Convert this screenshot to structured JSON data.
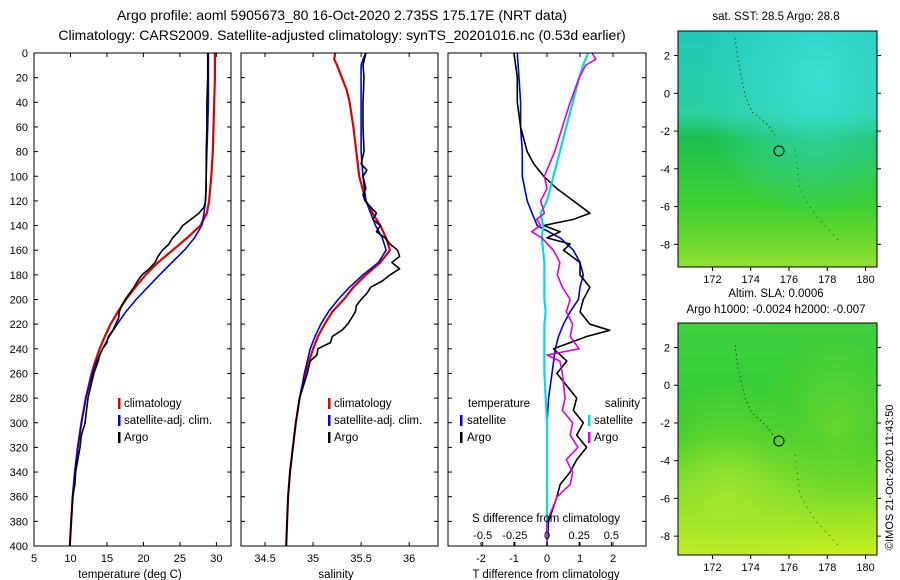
{
  "title_line1": "Argo profile: aoml 5905673_80 16-Oct-2020 2.735S 175.17E (NRT data)",
  "title_line2": "Climatology: CARS2009. Satellite-adjusted climatology: synTS_20201016.nc (0.53d earlier)",
  "colors": {
    "climatology": "#dd0000",
    "satellite": "#0000dd",
    "argo": "#000000",
    "s_sat": "#00dddd",
    "s_argo": "#dd00dd"
  },
  "depth_ticks": [
    "0",
    "20",
    "40",
    "60",
    "80",
    "100",
    "120",
    "140",
    "160",
    "180",
    "200",
    "220",
    "240",
    "260",
    "280",
    "300",
    "320",
    "340",
    "360",
    "380",
    "400"
  ],
  "chart_data": [
    {
      "type": "line",
      "id": "temperature",
      "xlabel": "temperature (deg C)",
      "xlim": [
        5,
        32
      ],
      "ylim": [
        0,
        400
      ],
      "xticks": [
        "5",
        "10",
        "15",
        "20",
        "25",
        "30"
      ],
      "legend": [
        "climatology",
        "satellite-adj. clim.",
        "Argo"
      ],
      "series": [
        {
          "name": "climatology",
          "depth": [
            0,
            20,
            40,
            60,
            80,
            100,
            120,
            130,
            140,
            150,
            160,
            170,
            180,
            190,
            200,
            210,
            220,
            230,
            240,
            250,
            260,
            280,
            300,
            320,
            340,
            360,
            380,
            400
          ],
          "values": [
            29.8,
            29.8,
            29.7,
            29.6,
            29.5,
            29.3,
            29.0,
            28.7,
            27.8,
            26.0,
            24.0,
            22.0,
            20.3,
            18.9,
            17.6,
            16.5,
            15.5,
            14.7,
            14.0,
            13.4,
            12.9,
            12.1,
            11.5,
            11.0,
            10.6,
            10.3,
            10.1,
            9.9
          ]
        },
        {
          "name": "satellite-adj. clim.",
          "depth": [
            0,
            20,
            40,
            60,
            80,
            100,
            120,
            130,
            140,
            150,
            160,
            170,
            180,
            190,
            200,
            210,
            220,
            230,
            240,
            250,
            260,
            280,
            300,
            320,
            340,
            360,
            380,
            400
          ],
          "values": [
            28.9,
            28.9,
            28.9,
            28.8,
            28.7,
            28.6,
            28.5,
            28.3,
            28.0,
            27.0,
            25.6,
            23.9,
            22.2,
            20.6,
            19.0,
            17.6,
            16.4,
            15.3,
            14.4,
            13.6,
            13.0,
            12.1,
            11.5,
            11.0,
            10.6,
            10.3,
            10.1,
            9.9
          ]
        },
        {
          "name": "Argo",
          "depth": [
            0,
            20,
            40,
            60,
            80,
            100,
            110,
            120,
            125,
            130,
            135,
            140,
            145,
            150,
            155,
            160,
            165,
            170,
            175,
            180,
            185,
            190,
            195,
            200,
            205,
            210,
            215,
            220,
            225,
            230,
            235,
            240,
            245,
            250,
            260,
            270,
            280,
            290,
            300,
            310,
            320,
            330,
            340,
            350,
            360,
            370,
            380,
            390,
            400
          ],
          "values": [
            28.8,
            28.8,
            28.7,
            28.7,
            28.6,
            28.6,
            28.6,
            28.5,
            28.3,
            27.6,
            26.5,
            25.4,
            24.8,
            24.0,
            23.5,
            22.6,
            22.0,
            21.6,
            20.8,
            19.8,
            19.2,
            18.7,
            18.1,
            17.5,
            17.0,
            16.7,
            16.6,
            16.2,
            15.8,
            15.2,
            15.0,
            14.4,
            14.0,
            13.8,
            13.2,
            12.8,
            12.4,
            12.2,
            12.0,
            11.5,
            11.3,
            11.0,
            10.7,
            10.6,
            10.3,
            10.2,
            10.1,
            10.0,
            9.9
          ]
        }
      ]
    },
    {
      "type": "line",
      "id": "salinity",
      "xlabel": "salinity",
      "xlim": [
        34.25,
        36.3
      ],
      "ylim": [
        0,
        400
      ],
      "xticks": [
        "34.5",
        "35",
        "35.5",
        "36"
      ],
      "legend": [
        "climatology",
        "satellite-adj. clim.",
        "Argo"
      ],
      "series": [
        {
          "name": "climatology",
          "depth": [
            0,
            5,
            10,
            20,
            30,
            40,
            60,
            80,
            100,
            120,
            130,
            140,
            150,
            160,
            170,
            180,
            190,
            200,
            210,
            220,
            230,
            240,
            250,
            260,
            280,
            300,
            320,
            340,
            360,
            380,
            400
          ],
          "values": [
            35.23,
            35.22,
            35.25,
            35.3,
            35.35,
            35.38,
            35.42,
            35.45,
            35.48,
            35.55,
            35.62,
            35.7,
            35.76,
            35.8,
            35.7,
            35.55,
            35.42,
            35.32,
            35.2,
            35.12,
            35.05,
            35.0,
            34.96,
            34.92,
            34.86,
            34.82,
            34.79,
            34.76,
            34.74,
            34.73,
            34.72
          ]
        },
        {
          "name": "satellite-adj. clim.",
          "depth": [
            0,
            5,
            10,
            20,
            40,
            60,
            80,
            100,
            120,
            130,
            140,
            150,
            160,
            170,
            180,
            190,
            200,
            210,
            220,
            230,
            240,
            260,
            280,
            300,
            320,
            340,
            360,
            380,
            400
          ],
          "values": [
            35.55,
            35.52,
            35.5,
            35.5,
            35.5,
            35.5,
            35.5,
            35.52,
            35.55,
            35.6,
            35.65,
            35.72,
            35.76,
            35.68,
            35.52,
            35.38,
            35.26,
            35.16,
            35.08,
            35.02,
            34.97,
            34.91,
            34.86,
            34.82,
            34.79,
            34.76,
            34.74,
            34.73,
            34.72
          ]
        },
        {
          "name": "Argo",
          "depth": [
            0,
            10,
            20,
            40,
            60,
            80,
            90,
            95,
            100,
            110,
            115,
            120,
            125,
            130,
            135,
            140,
            145,
            150,
            155,
            160,
            165,
            170,
            175,
            180,
            185,
            190,
            195,
            200,
            205,
            210,
            220,
            225,
            230,
            235,
            240,
            245,
            250,
            260,
            280,
            300,
            320,
            340,
            360,
            380,
            400
          ],
          "values": [
            35.55,
            35.52,
            35.53,
            35.52,
            35.52,
            35.53,
            35.5,
            35.56,
            35.52,
            35.55,
            35.52,
            35.54,
            35.6,
            35.66,
            35.62,
            35.7,
            35.66,
            35.75,
            35.8,
            35.88,
            35.9,
            35.82,
            35.9,
            35.8,
            35.72,
            35.6,
            35.56,
            35.5,
            35.45,
            35.44,
            35.36,
            35.3,
            35.2,
            35.18,
            35.05,
            35.04,
            34.97,
            34.94,
            34.86,
            34.82,
            34.79,
            34.76,
            34.74,
            34.73,
            34.72
          ]
        }
      ]
    },
    {
      "type": "line",
      "id": "difference",
      "xlabel": "T difference from climatology",
      "xlim": [
        -3,
        3
      ],
      "ylim": [
        0,
        400
      ],
      "xticks": [
        "-2",
        "-1",
        "0",
        "1",
        "2"
      ],
      "top_axis_label": "S difference from climatology",
      "top_ticks": [
        "-0.5",
        "-0.25",
        "0",
        "0.25",
        "0.5"
      ],
      "legend_left": {
        "header": "temperature",
        "items": [
          "satellite",
          "Argo"
        ]
      },
      "legend_right": {
        "header": "salinity",
        "items": [
          "satellite",
          "Argo"
        ]
      },
      "series": [
        {
          "name": "T satellite",
          "depth": [
            0,
            20,
            40,
            60,
            80,
            100,
            120,
            140,
            150,
            160,
            170,
            180,
            190,
            200,
            210,
            220,
            230,
            240,
            260,
            280,
            300,
            320,
            340,
            360,
            380,
            400
          ],
          "values": [
            -0.9,
            -0.85,
            -0.8,
            -0.8,
            -0.75,
            -0.75,
            -0.6,
            -0.3,
            0.4,
            0.8,
            1.0,
            1.1,
            1.0,
            0.95,
            0.7,
            0.5,
            0.35,
            0.25,
            0.15,
            0.05,
            0.0,
            0.0,
            0.0,
            0.0,
            0.0,
            0.0
          ]
        },
        {
          "name": "T Argo",
          "depth": [
            0,
            20,
            40,
            60,
            80,
            90,
            100,
            110,
            120,
            130,
            135,
            140,
            145,
            150,
            155,
            160,
            170,
            180,
            190,
            200,
            210,
            220,
            225,
            230,
            240,
            250,
            260,
            270,
            280,
            290,
            300,
            310,
            320,
            330,
            340,
            350,
            360,
            380,
            400
          ],
          "values": [
            -1.0,
            -0.9,
            -0.9,
            -0.8,
            -0.6,
            -0.4,
            -0.1,
            0.3,
            0.8,
            1.3,
            0.8,
            -0.1,
            0.4,
            0.0,
            0.7,
            0.5,
            1.0,
            1.0,
            1.3,
            1.1,
            1.0,
            1.3,
            1.9,
            1.2,
            0.2,
            0.6,
            0.3,
            0.6,
            0.9,
            0.8,
            1.1,
            0.9,
            1.2,
            0.9,
            0.7,
            0.4,
            0.3,
            0.05,
            0.0
          ]
        },
        {
          "name": "S satellite",
          "depth": [
            0,
            5,
            10,
            20,
            40,
            60,
            80,
            100,
            120,
            130,
            140,
            150,
            160,
            170,
            180,
            190,
            200,
            210,
            220,
            240,
            260,
            280,
            300,
            320,
            340,
            360,
            380,
            400
          ],
          "values": [
            0.32,
            0.3,
            0.28,
            0.25,
            0.2,
            0.15,
            0.1,
            0.05,
            0.0,
            -0.05,
            -0.03,
            -0.04,
            -0.03,
            -0.02,
            -0.02,
            -0.02,
            -0.02,
            -0.01,
            -0.02,
            -0.02,
            -0.02,
            -0.01,
            0.0,
            0.0,
            0.0,
            0.0,
            0.0,
            0.0
          ]
        },
        {
          "name": "S Argo",
          "depth": [
            0,
            5,
            10,
            20,
            40,
            60,
            80,
            100,
            110,
            120,
            130,
            135,
            140,
            145,
            150,
            160,
            170,
            180,
            190,
            200,
            210,
            220,
            230,
            240,
            245,
            250,
            260,
            280,
            290,
            300,
            310,
            320,
            330,
            340,
            350,
            360,
            380,
            400
          ],
          "values": [
            0.35,
            0.38,
            0.3,
            0.25,
            0.18,
            0.12,
            0.06,
            -0.02,
            0.0,
            -0.05,
            -0.02,
            -0.08,
            -0.05,
            -0.12,
            -0.04,
            0.05,
            0.1,
            0.08,
            0.12,
            0.18,
            0.15,
            0.2,
            0.18,
            0.25,
            0.0,
            0.1,
            0.12,
            0.14,
            0.12,
            0.2,
            0.18,
            0.24,
            0.15,
            0.2,
            0.18,
            0.08,
            0.0,
            0.0
          ]
        }
      ]
    }
  ],
  "maps": [
    {
      "title": "sat. SST: 28.5 Argo: 28.8",
      "yticks": [
        "2",
        "0",
        "-2",
        "-4",
        "-6",
        "-8"
      ],
      "xticks": [
        "172",
        "174",
        "176",
        "178",
        "180"
      ]
    },
    {
      "title_line1": "Altim. SLA: 0.0006",
      "title_line2": "Argo h1000: -0.0024 h2000: -0.007",
      "yticks": [
        "2",
        "0",
        "-2",
        "-4",
        "-6",
        "-8"
      ],
      "xticks": [
        "172",
        "174",
        "176",
        "178",
        "180"
      ]
    }
  ],
  "watermark": "©IMOS 21-Oct-2020 11:43:50"
}
